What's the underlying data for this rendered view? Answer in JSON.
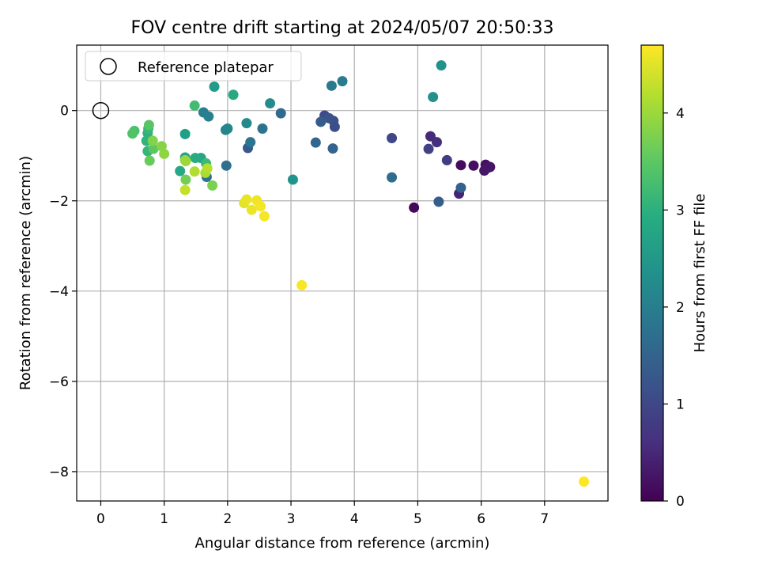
{
  "chart_data": {
    "type": "scatter",
    "title": "FOV centre drift starting at 2024/05/07 20:50:33",
    "xlabel": "Angular distance from reference (arcmin)",
    "ylabel": "Rotation from reference (arcmin)",
    "xlim": [
      -0.38,
      8.0
    ],
    "ylim": [
      -8.65,
      1.45
    ],
    "xticks": [
      0,
      1,
      2,
      3,
      4,
      5,
      6,
      7
    ],
    "yticks": [
      0,
      -2,
      -4,
      -6,
      -8
    ],
    "grid": true,
    "legend": {
      "placement": "top-left",
      "label": "Reference platepar"
    },
    "reference_point": {
      "x": 0,
      "y": 0
    },
    "colorbar": {
      "label": "Hours from first FF file",
      "colormap": "viridis",
      "min": 0,
      "max": 4.7,
      "ticks": [
        0,
        1,
        2,
        3,
        4
      ]
    },
    "points": [
      {
        "x": 4.94,
        "y": -2.15,
        "c": 0.1
      },
      {
        "x": 5.68,
        "y": -1.21,
        "c": 0.15
      },
      {
        "x": 5.88,
        "y": -1.22,
        "c": 0.2
      },
      {
        "x": 6.07,
        "y": -1.2,
        "c": 0.22
      },
      {
        "x": 6.14,
        "y": -1.25,
        "c": 0.25
      },
      {
        "x": 6.05,
        "y": -1.33,
        "c": 0.28
      },
      {
        "x": 6.1,
        "y": -1.27,
        "c": 0.3
      },
      {
        "x": 5.65,
        "y": -1.84,
        "c": 0.45
      },
      {
        "x": 5.2,
        "y": -0.57,
        "c": 0.55
      },
      {
        "x": 5.3,
        "y": -0.7,
        "c": 0.65
      },
      {
        "x": 5.46,
        "y": -1.1,
        "c": 0.85
      },
      {
        "x": 5.17,
        "y": -0.85,
        "c": 0.9
      },
      {
        "x": 4.59,
        "y": -0.61,
        "c": 1.0
      },
      {
        "x": 3.53,
        "y": -0.11,
        "c": 1.05
      },
      {
        "x": 3.69,
        "y": -0.36,
        "c": 1.1
      },
      {
        "x": 3.67,
        "y": -0.23,
        "c": 1.15
      },
      {
        "x": 3.6,
        "y": -0.17,
        "c": 1.2
      },
      {
        "x": 2.32,
        "y": -0.83,
        "c": 1.3
      },
      {
        "x": 3.47,
        "y": -0.25,
        "c": 1.35
      },
      {
        "x": 5.33,
        "y": -2.02,
        "c": 1.4
      },
      {
        "x": 5.68,
        "y": -1.71,
        "c": 1.45
      },
      {
        "x": 3.66,
        "y": -0.84,
        "c": 1.5
      },
      {
        "x": 3.39,
        "y": -0.71,
        "c": 1.55
      },
      {
        "x": 2.84,
        "y": -0.06,
        "c": 1.6
      },
      {
        "x": 4.59,
        "y": -1.48,
        "c": 1.65
      },
      {
        "x": 1.98,
        "y": -1.22,
        "c": 1.7
      },
      {
        "x": 1.67,
        "y": -1.47,
        "c": 1.75
      },
      {
        "x": 2.55,
        "y": -0.4,
        "c": 1.8
      },
      {
        "x": 2.36,
        "y": -0.7,
        "c": 1.85
      },
      {
        "x": 3.64,
        "y": 0.55,
        "c": 1.9
      },
      {
        "x": 3.81,
        "y": 0.65,
        "c": 1.95
      },
      {
        "x": 1.62,
        "y": -0.04,
        "c": 2.0
      },
      {
        "x": 1.7,
        "y": -0.13,
        "c": 2.05
      },
      {
        "x": 1.97,
        "y": -0.43,
        "c": 2.1
      },
      {
        "x": 2.0,
        "y": -0.4,
        "c": 2.15
      },
      {
        "x": 2.3,
        "y": -0.28,
        "c": 2.2
      },
      {
        "x": 2.67,
        "y": 0.16,
        "c": 2.3
      },
      {
        "x": 5.24,
        "y": 0.3,
        "c": 2.35
      },
      {
        "x": 5.37,
        "y": 1.0,
        "c": 2.4
      },
      {
        "x": 3.03,
        "y": -1.53,
        "c": 2.45
      },
      {
        "x": 1.79,
        "y": 0.53,
        "c": 2.55
      },
      {
        "x": 1.33,
        "y": -0.52,
        "c": 2.65
      },
      {
        "x": 1.33,
        "y": -1.04,
        "c": 2.7
      },
      {
        "x": 1.58,
        "y": -1.05,
        "c": 2.75
      },
      {
        "x": 1.25,
        "y": -1.34,
        "c": 2.8
      },
      {
        "x": 2.09,
        "y": 0.35,
        "c": 2.85
      },
      {
        "x": 1.49,
        "y": -1.05,
        "c": 2.9
      },
      {
        "x": 0.74,
        "y": -0.5,
        "c": 3.0
      },
      {
        "x": 0.72,
        "y": -0.67,
        "c": 3.05
      },
      {
        "x": 0.74,
        "y": -0.9,
        "c": 3.1
      },
      {
        "x": 0.75,
        "y": -0.4,
        "c": 3.15
      },
      {
        "x": 1.66,
        "y": -1.17,
        "c": 3.2
      },
      {
        "x": 1.48,
        "y": 0.11,
        "c": 3.25
      },
      {
        "x": 0.53,
        "y": -0.45,
        "c": 3.35
      },
      {
        "x": 0.5,
        "y": -0.51,
        "c": 3.4
      },
      {
        "x": 0.76,
        "y": -0.32,
        "c": 3.45
      },
      {
        "x": 0.83,
        "y": -0.85,
        "c": 3.5
      },
      {
        "x": 0.77,
        "y": -1.11,
        "c": 3.6
      },
      {
        "x": 1.34,
        "y": -1.53,
        "c": 3.7
      },
      {
        "x": 1.76,
        "y": -1.66,
        "c": 3.75
      },
      {
        "x": 0.82,
        "y": -0.67,
        "c": 3.8
      },
      {
        "x": 0.96,
        "y": -0.79,
        "c": 3.85
      },
      {
        "x": 1.0,
        "y": -0.96,
        "c": 3.9
      },
      {
        "x": 1.33,
        "y": -1.1,
        "c": 3.95
      },
      {
        "x": 1.34,
        "y": -1.12,
        "c": 4.0
      },
      {
        "x": 1.65,
        "y": -1.38,
        "c": 4.1
      },
      {
        "x": 1.48,
        "y": -1.35,
        "c": 4.15
      },
      {
        "x": 1.68,
        "y": -1.28,
        "c": 4.2
      },
      {
        "x": 1.33,
        "y": -1.76,
        "c": 4.3
      },
      {
        "x": 2.26,
        "y": -2.05,
        "c": 4.5
      },
      {
        "x": 2.3,
        "y": -1.97,
        "c": 4.55
      },
      {
        "x": 2.38,
        "y": -2.2,
        "c": 4.58
      },
      {
        "x": 2.46,
        "y": -1.99,
        "c": 4.6
      },
      {
        "x": 2.52,
        "y": -2.12,
        "c": 4.62
      },
      {
        "x": 2.58,
        "y": -2.34,
        "c": 4.64
      },
      {
        "x": 3.17,
        "y": -3.87,
        "c": 4.66
      },
      {
        "x": 7.62,
        "y": -8.22,
        "c": 4.7
      }
    ]
  }
}
